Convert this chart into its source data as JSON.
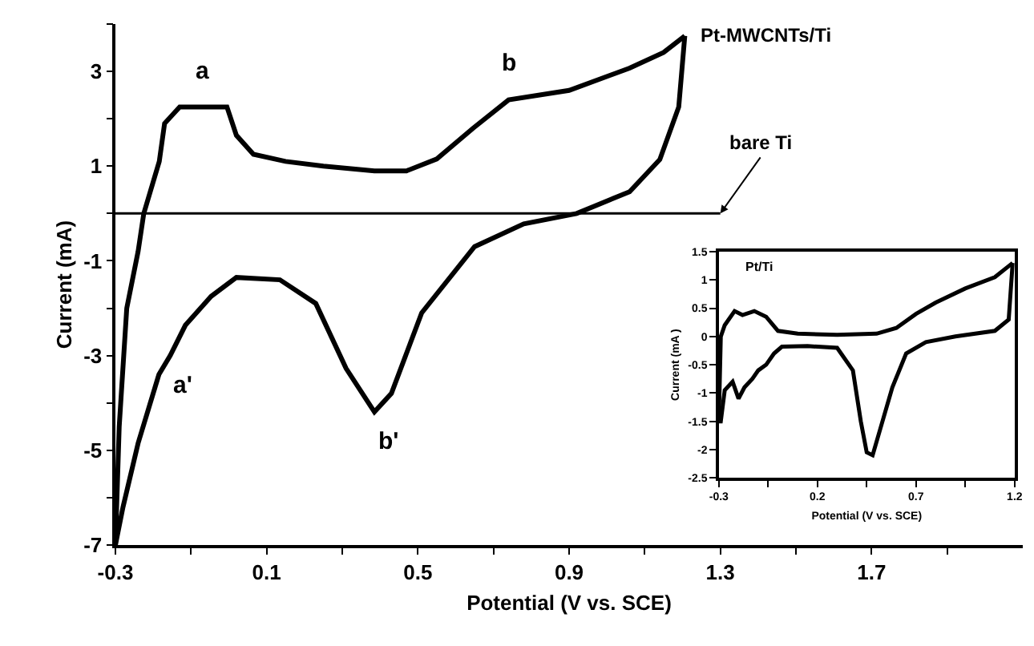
{
  "chart_data": [
    {
      "type": "line",
      "xlabel": "Potential (V vs. SCE)",
      "ylabel": "Current (mA)",
      "xlim": [
        -0.3,
        2.1
      ],
      "ylim": [
        -7,
        4
      ],
      "xticks": [
        -0.3,
        {
          "value": -0.1,
          "label": null
        },
        0.1,
        {
          "value": 0.3,
          "label": null
        },
        0.5,
        {
          "value": 0.7,
          "label": null
        },
        0.9,
        {
          "value": 1.1,
          "label": null
        },
        1.3,
        {
          "value": 1.5,
          "label": null
        },
        1.7,
        {
          "value": 1.9,
          "label": null
        }
      ],
      "yticks": [
        -7,
        {
          "value": -6,
          "label": null
        },
        -5,
        {
          "value": -4,
          "label": null
        },
        -3,
        {
          "value": -2,
          "label": null
        },
        -1,
        {
          "value": 0,
          "label": null
        },
        1,
        {
          "value": 2,
          "label": null
        },
        3,
        {
          "value": 4,
          "label": null
        }
      ],
      "legend": false,
      "marker": "none",
      "line_style": "solid",
      "series": [
        {
          "name": "Pt-MWCNTs/Ti",
          "color": "#000000",
          "x": [
            -0.3,
            -0.29,
            -0.27,
            -0.24,
            -0.225,
            -0.184,
            -0.17,
            -0.13,
            -0.07,
            -0.005,
            0.02,
            0.065,
            0.15,
            0.25,
            0.385,
            0.47,
            0.55,
            0.646,
            0.74,
            0.9,
            1.06,
            1.15,
            1.206
          ],
          "values": [
            -7,
            -4.5,
            -2.0,
            -0.8,
            0,
            1.1,
            1.9,
            2.25,
            2.25,
            2.25,
            1.65,
            1.25,
            1.1,
            1.0,
            0.9,
            0.9,
            1.15,
            1.8,
            2.4,
            2.6,
            3.07,
            3.4,
            3.75
          ]
        },
        {
          "color": "#000000",
          "x": [
            1.206,
            1.19,
            1.14,
            1.06,
            0.92,
            0.78,
            0.65,
            0.51,
            0.43,
            0.385,
            0.31,
            0.23,
            0.135,
            0.02,
            -0.047,
            -0.115,
            -0.155,
            -0.185,
            -0.24,
            -0.28,
            -0.3
          ],
          "values": [
            3.75,
            2.25,
            1.14,
            0.46,
            0.0,
            -0.22,
            -0.7,
            -2.1,
            -3.8,
            -4.19,
            -3.27,
            -1.9,
            -1.4,
            -1.35,
            -1.75,
            -2.36,
            -3.0,
            -3.4,
            -4.85,
            -6.2,
            -7
          ]
        },
        {
          "name": "bare Ti",
          "color": "#000000",
          "x": [
            -0.3,
            1.3
          ],
          "values": [
            0,
            0
          ]
        }
      ],
      "annotations": [
        {
          "text": "a",
          "x": -0.07,
          "y": 2.25
        },
        {
          "text": "b",
          "x": 0.74,
          "y": 2.4
        },
        {
          "text": "a'",
          "x": -0.155,
          "y": -3.0
        },
        {
          "text": "b'",
          "x": 0.385,
          "y": -4.19
        }
      ]
    },
    {
      "type": "line",
      "title": "Pt/Ti",
      "xlabel": "Potential (V vs. SCE)",
      "ylabel": "Current (mA )",
      "xlim": [
        -0.3,
        1.2
      ],
      "ylim": [
        -2.5,
        1.5
      ],
      "xticks": [
        -0.3,
        {
          "value": -0.05,
          "label": null
        },
        0.2,
        {
          "value": 0.45,
          "label": null
        },
        0.7,
        {
          "value": 0.95,
          "label": null
        },
        1.2
      ],
      "yticks": [
        -2.5,
        -2,
        -1.5,
        -1,
        -0.5,
        0,
        0.5,
        1,
        1.5
      ],
      "legend": false,
      "marker": "none",
      "line_style": "solid",
      "series": [
        {
          "color": "#000000",
          "x": [
            -0.3,
            -0.29,
            -0.27,
            -0.22,
            -0.18,
            -0.12,
            -0.06,
            0.0,
            0.1,
            0.3,
            0.5,
            0.6,
            0.7,
            0.8,
            0.95,
            1.1,
            1.19
          ],
          "values": [
            -1.5,
            0,
            0.2,
            0.45,
            0.38,
            0.45,
            0.35,
            0.1,
            0.05,
            0.03,
            0.05,
            0.15,
            0.4,
            0.6,
            0.85,
            1.05,
            1.3
          ]
        },
        {
          "color": "#000000",
          "x": [
            1.19,
            1.17,
            1.1,
            0.9,
            0.75,
            0.65,
            0.58,
            0.53,
            0.48,
            0.45,
            0.42,
            0.38,
            0.3,
            0.15,
            0.02,
            -0.02,
            -0.06,
            -0.1,
            -0.13,
            -0.17,
            -0.2,
            -0.23,
            -0.27,
            -0.29,
            -0.3
          ],
          "values": [
            1.3,
            0.3,
            0.1,
            0.0,
            -0.1,
            -0.3,
            -0.9,
            -1.5,
            -2.1,
            -2.05,
            -1.5,
            -0.6,
            -0.2,
            -0.17,
            -0.18,
            -0.3,
            -0.5,
            -0.6,
            -0.75,
            -0.9,
            -1.1,
            -0.8,
            -0.95,
            -1.5,
            -1.5
          ]
        }
      ]
    }
  ]
}
